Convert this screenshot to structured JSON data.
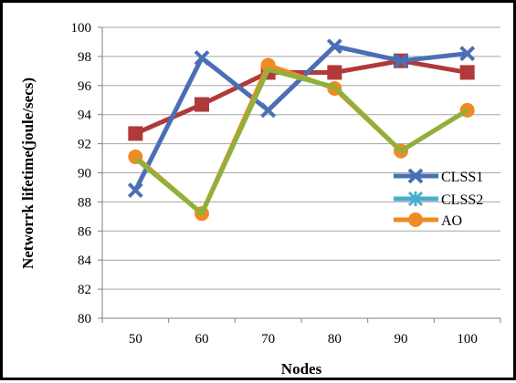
{
  "chart_data": {
    "type": "line",
    "title": "",
    "xlabel": "Nodes",
    "ylabel": "Networrk lifetime(joule/secs)",
    "categories": [
      "50",
      "60",
      "70",
      "80",
      "90",
      "100"
    ],
    "ylim": [
      80,
      100
    ],
    "yticks": [
      80,
      82,
      84,
      86,
      88,
      90,
      92,
      94,
      96,
      98,
      100
    ],
    "grid": true,
    "legend_position": "right",
    "series": [
      {
        "name": "CLSS1",
        "color": "#4a6fb5",
        "marker": "x",
        "values": [
          88.8,
          97.9,
          94.3,
          98.7,
          97.7,
          98.2
        ]
      },
      {
        "name": "CLSS2",
        "color": "#4aaccc",
        "marker": "star",
        "values": [
          null,
          null,
          null,
          null,
          null,
          null
        ]
      },
      {
        "name": "AO",
        "color": "#f08a24",
        "marker": "circle",
        "values": [
          91.1,
          87.2,
          97.4,
          95.8,
          91.5,
          94.3
        ]
      },
      {
        "name": "",
        "color": "#b03a3a",
        "marker": "square",
        "values": [
          92.7,
          94.7,
          96.9,
          96.9,
          97.7,
          96.9
        ]
      },
      {
        "name": "",
        "color": "#8fb13b",
        "marker": "none",
        "values": [
          91.0,
          87.2,
          97.1,
          95.9,
          91.5,
          94.3
        ]
      }
    ]
  }
}
